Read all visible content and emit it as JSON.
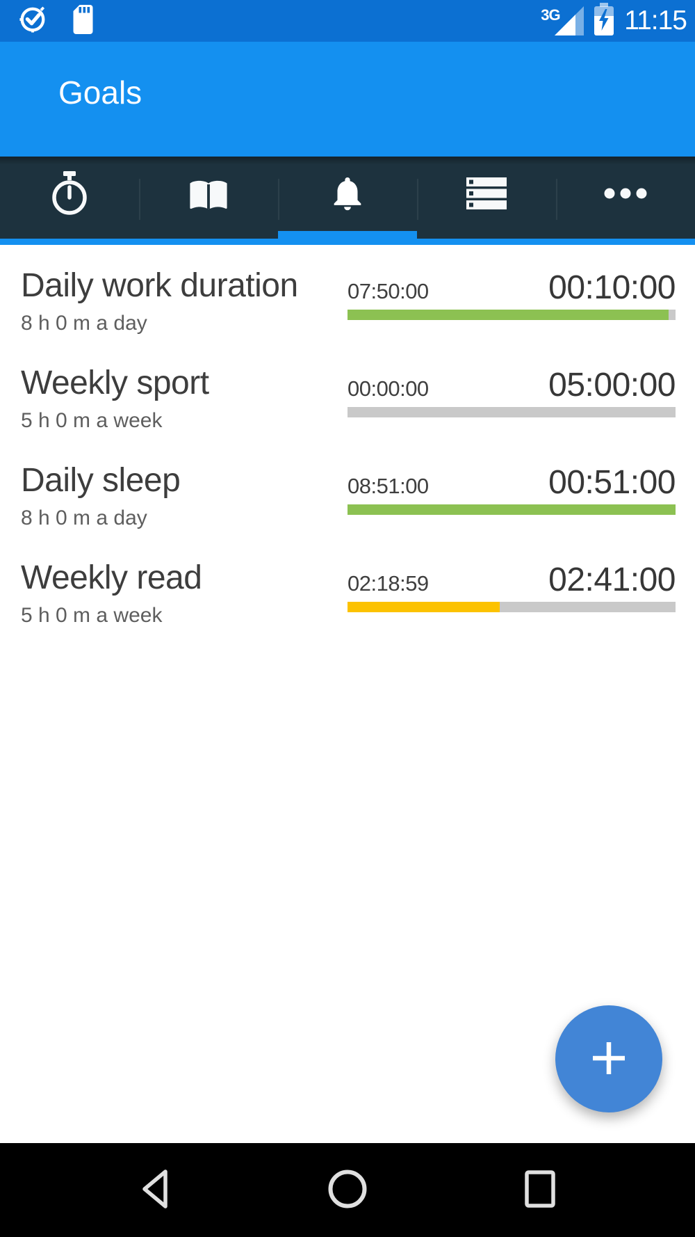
{
  "status_bar": {
    "time": "11:15",
    "network_label": "3G",
    "left_icons": [
      "clock-notification-icon",
      "sd-card-icon"
    ],
    "right_icons": [
      "signal-strength-icon",
      "battery-charging-icon"
    ]
  },
  "header": {
    "title": "Goals"
  },
  "tab_bar": {
    "tabs": [
      {
        "id": "timer",
        "icon": "stopwatch-icon",
        "selected": false
      },
      {
        "id": "log",
        "icon": "book-icon",
        "selected": false
      },
      {
        "id": "goals",
        "icon": "bell-icon",
        "selected": true
      },
      {
        "id": "lists",
        "icon": "storage-icon",
        "selected": false
      },
      {
        "id": "more",
        "icon": "more-dots-icon",
        "selected": false
      }
    ]
  },
  "goals": [
    {
      "title": "Daily work duration",
      "subtitle": "8 h 0 m a day",
      "left_time": "07:50:00",
      "right_time": "00:10:00",
      "progress": 0.979,
      "bar_color": "#8CC152"
    },
    {
      "title": "Weekly sport",
      "subtitle": "5 h 0 m a week",
      "left_time": "00:00:00",
      "right_time": "05:00:00",
      "progress": 0.0,
      "bar_color": "#8CC152"
    },
    {
      "title": "Daily sleep",
      "subtitle": "8 h 0 m a day",
      "left_time": "08:51:00",
      "right_time": "00:51:00",
      "progress": 1.0,
      "bar_color": "#8CC152"
    },
    {
      "title": "Weekly read",
      "subtitle": "5 h 0 m a week",
      "left_time": "02:18:59",
      "right_time": "02:41:00",
      "progress": 0.463,
      "bar_color": "#FCC200"
    }
  ],
  "fab": {
    "icon": "plus-icon"
  },
  "nav_bar": {
    "buttons": [
      "back",
      "home",
      "recents"
    ]
  },
  "colors": {
    "status_bar_bg": "#0C70D2",
    "header_bg": "#1490F0",
    "tab_bar_bg": "#1D323E",
    "accent_blue": "#1490F0",
    "fab_bg": "#4285D6",
    "progress_green": "#8CC152",
    "progress_amber": "#FCC200",
    "progress_track": "#C9C9C9",
    "nav_bar_bg": "#000000"
  }
}
